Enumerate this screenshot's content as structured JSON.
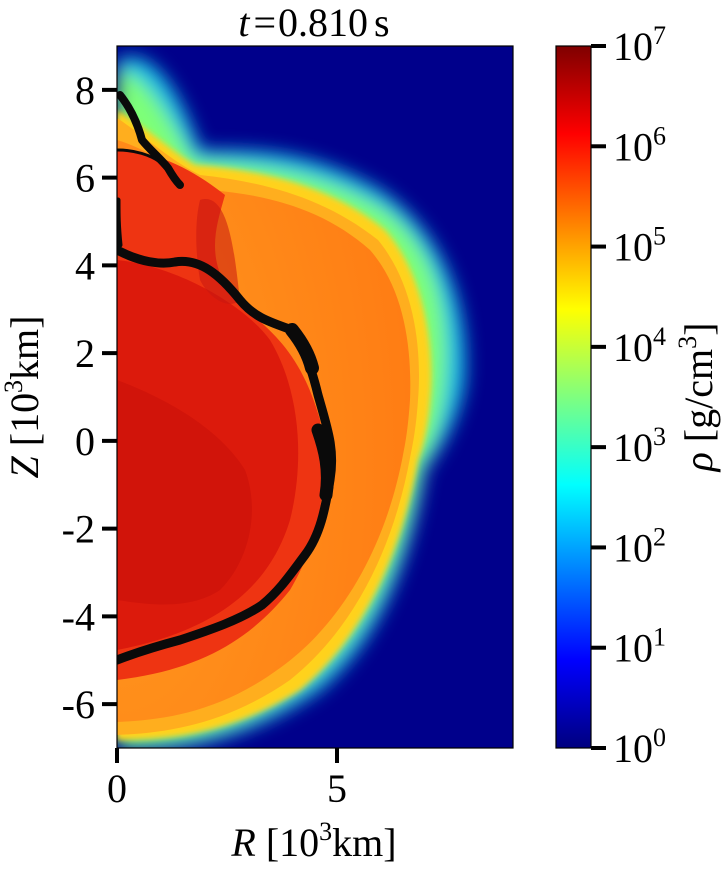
{
  "chart_data": {
    "type": "heatmap",
    "title": "t = 0.810 s",
    "title_parts": {
      "var": "t",
      "eq": "=",
      "value": "0.810",
      "unit": "s"
    },
    "x_axis": {
      "var": "R",
      "unit_text": "[10",
      "unit_exp": "3",
      "unit_tail": "km]",
      "range": [
        0,
        9
      ],
      "ticks": [
        0,
        5
      ],
      "tick_labels": [
        "0",
        "5"
      ]
    },
    "y_axis": {
      "var": "Z",
      "unit_text": "[10",
      "unit_exp": "3",
      "unit_tail": "km]",
      "range": [
        -7,
        9
      ],
      "ticks": [
        8,
        6,
        4,
        2,
        0,
        -2,
        -4,
        -6
      ],
      "tick_labels": [
        "8",
        "6",
        "4",
        "2",
        "0",
        "-2",
        "-4",
        "-6"
      ]
    },
    "colorbar": {
      "var": "ρ",
      "unit_text": "[g/cm",
      "unit_exp": "3",
      "unit_tail": "]",
      "scale": "log",
      "range": [
        1,
        10000000
      ],
      "tick_exponents": [
        7,
        6,
        5,
        4,
        3,
        2,
        1,
        0
      ],
      "tick_base": "10",
      "colormap": "jet",
      "colormap_stops": [
        "#00007f",
        "#0000ff",
        "#007fff",
        "#00ffff",
        "#7fff7f",
        "#ffff00",
        "#ff7f00",
        "#ff0000",
        "#7f0000"
      ]
    },
    "field": {
      "description_hidden": false,
      "background_color": "#00008b",
      "regions": [
        {
          "name": "outer-shell",
          "color": "#ff8c1a"
        },
        {
          "name": "inner-core",
          "color": "#ea2a0f"
        },
        {
          "name": "deep-core",
          "color": "#d1150c"
        },
        {
          "name": "front-contour",
          "color": "#000000"
        }
      ]
    }
  }
}
